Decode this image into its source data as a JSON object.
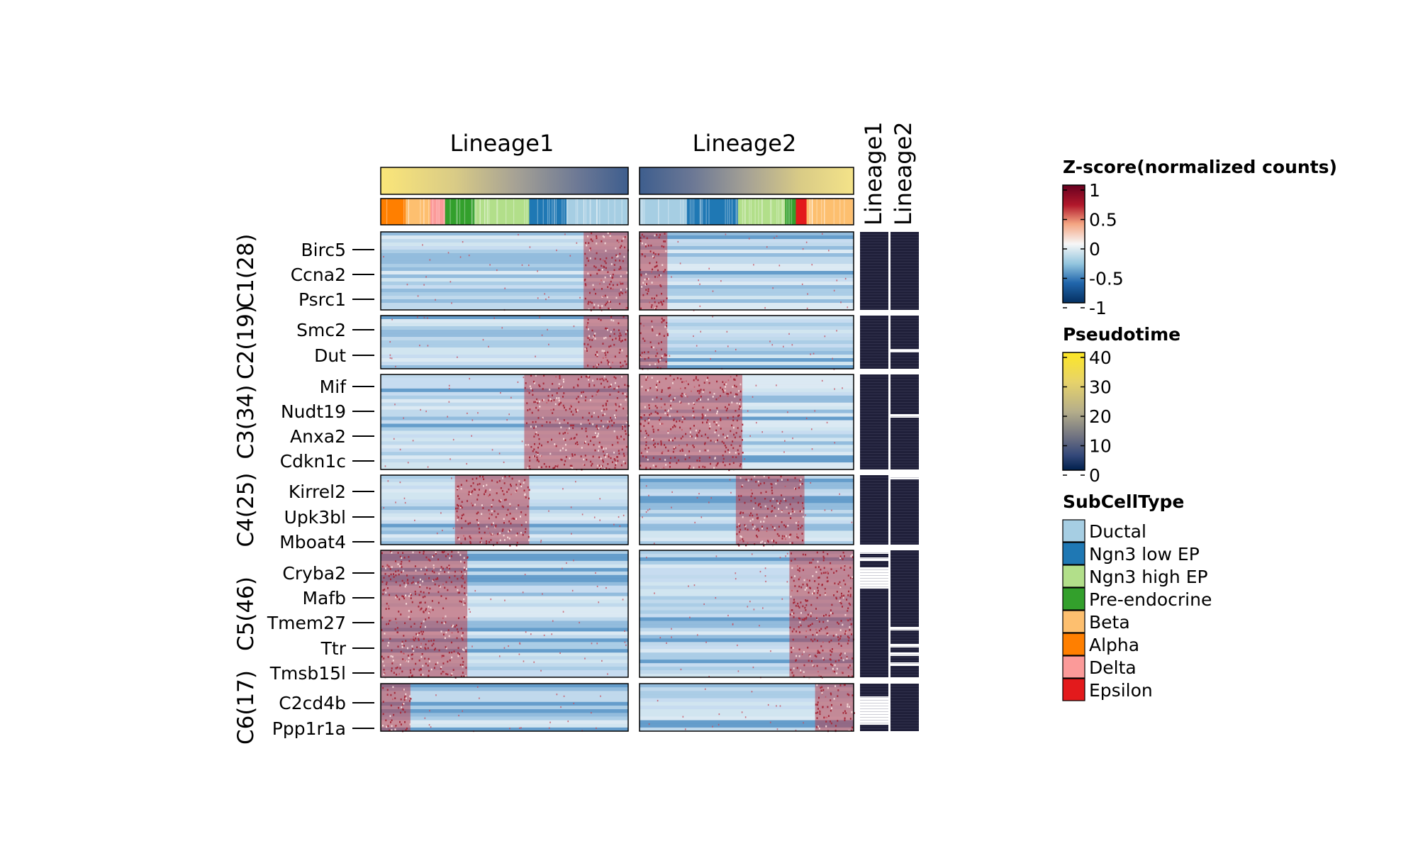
{
  "chart_data": {
    "type": "heatmap",
    "column_titles": [
      "Lineage1",
      "Lineage2"
    ],
    "side_annotation_titles": [
      "Lineage1",
      "Lineage2"
    ],
    "clusters": [
      {
        "label": "C1(28)",
        "genes": [
          "Birc5",
          "Ccna2",
          "Psrc1"
        ]
      },
      {
        "label": "C2(19)",
        "genes": [
          "Smc2",
          "Dut"
        ]
      },
      {
        "label": "C3(34)",
        "genes": [
          "Mif",
          "Nudt19",
          "Anxa2",
          "Cdkn1c"
        ]
      },
      {
        "label": "C4(25)",
        "genes": [
          "Kirrel2",
          "Upk3bl",
          "Mboat4"
        ]
      },
      {
        "label": "C5(46)",
        "genes": [
          "Cryba2",
          "Mafb",
          "Tmem27",
          "Ttr",
          "Tmsb15l"
        ]
      },
      {
        "label": "C6(17)",
        "genes": [
          "C2cd4b",
          "Ppp1r1a"
        ]
      }
    ],
    "legends": {
      "zscore": {
        "title": "Z-score(normalized counts)",
        "ticks": [
          "1",
          "0.5",
          "0",
          "-0.5",
          "-1"
        ],
        "range": [
          -1,
          1
        ],
        "colors": [
          "#67001F",
          "#B2182B",
          "#F4A582",
          "#F7F7F7",
          "#92C5DE",
          "#2166AC",
          "#053061"
        ]
      },
      "pseudotime": {
        "title": "Pseudotime",
        "ticks": [
          "40",
          "30",
          "20",
          "10",
          "0"
        ],
        "range": [
          0,
          42
        ],
        "colors": [
          "#FDE725",
          "#E7D36A",
          "#B5AE8A",
          "#6E7181",
          "#35497A",
          "#00204D"
        ]
      },
      "subcelltype": {
        "title": "SubCellType",
        "items": [
          {
            "label": "Ductal",
            "color": "#A6CEE3"
          },
          {
            "label": "Ngn3 low EP",
            "color": "#1F78B4"
          },
          {
            "label": "Ngn3 high EP",
            "color": "#B2DF8A"
          },
          {
            "label": "Pre-endocrine",
            "color": "#33A02C"
          },
          {
            "label": "Beta",
            "color": "#FDBF6F"
          },
          {
            "label": "Alpha",
            "color": "#FF7F00"
          },
          {
            "label": "Delta",
            "color": "#FB9A99"
          },
          {
            "label": "Epsilon",
            "color": "#E31A1C"
          }
        ]
      }
    }
  }
}
